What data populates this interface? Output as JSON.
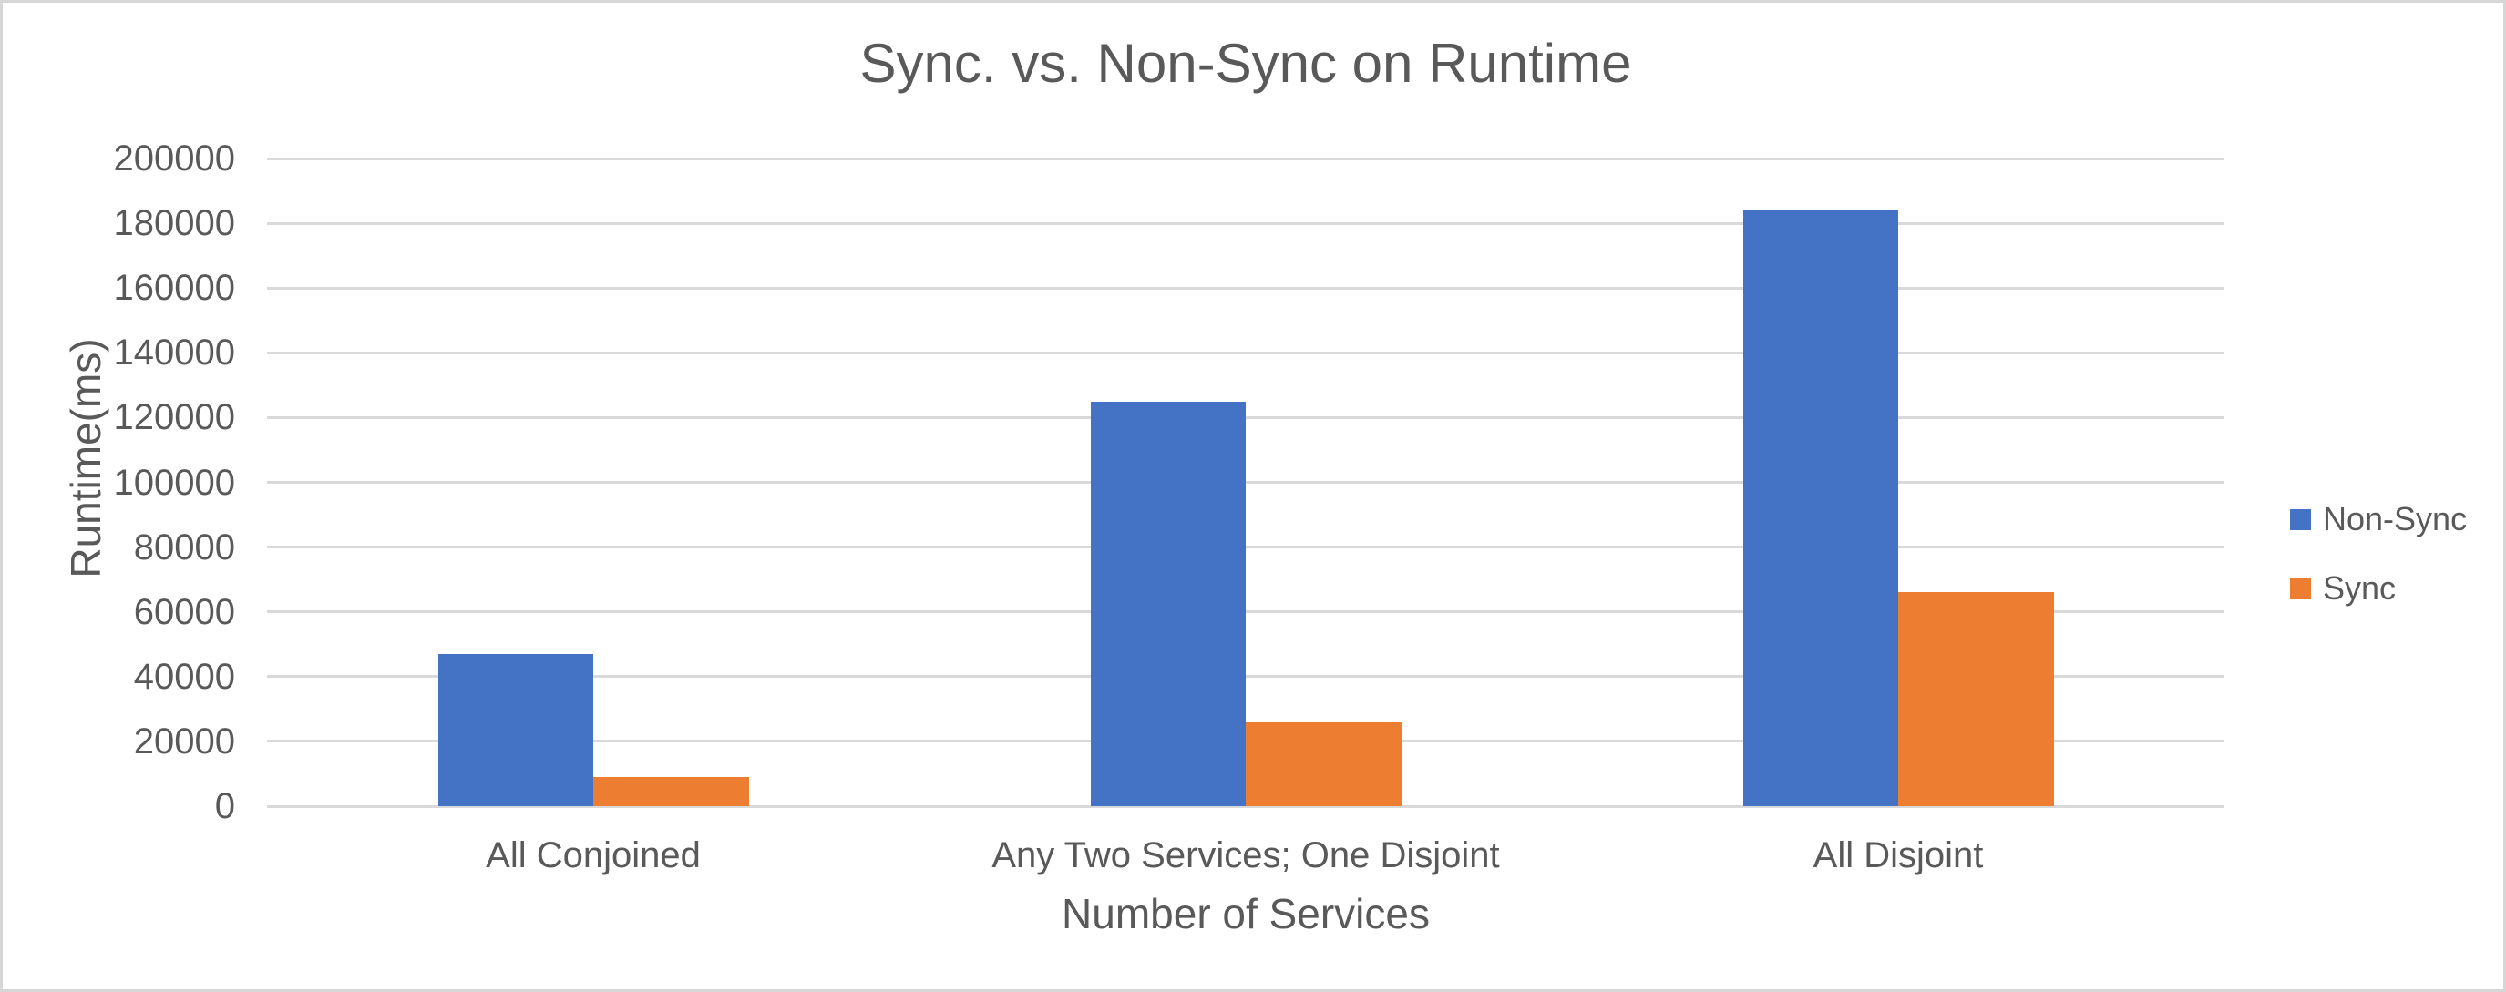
{
  "chart_data": {
    "type": "bar",
    "title": "Sync. vs. Non-Sync on Runtime",
    "xlabel": "Number of Services",
    "ylabel": "Runtime(ms)",
    "categories": [
      "All Conjoined",
      "Any Two Services; One Disjoint",
      "All Disjoint"
    ],
    "series": [
      {
        "name": "Non-Sync",
        "color": "#4472C4",
        "values": [
          47000,
          125000,
          184000
        ]
      },
      {
        "name": "Sync",
        "color": "#ED7D31",
        "values": [
          9000,
          26000,
          66000
        ]
      }
    ],
    "ylim": [
      0,
      200000
    ],
    "ytick_step": 20000,
    "ytick_labels": [
      "0",
      "20000",
      "40000",
      "60000",
      "80000",
      "100000",
      "120000",
      "140000",
      "160000",
      "180000",
      "200000"
    ],
    "grid": "horizontal",
    "legend_position": "right"
  },
  "colors": {
    "text": "#595959",
    "gridline": "#D9D9D9",
    "border": "#D6D6D6",
    "background": "#FFFFFF"
  }
}
